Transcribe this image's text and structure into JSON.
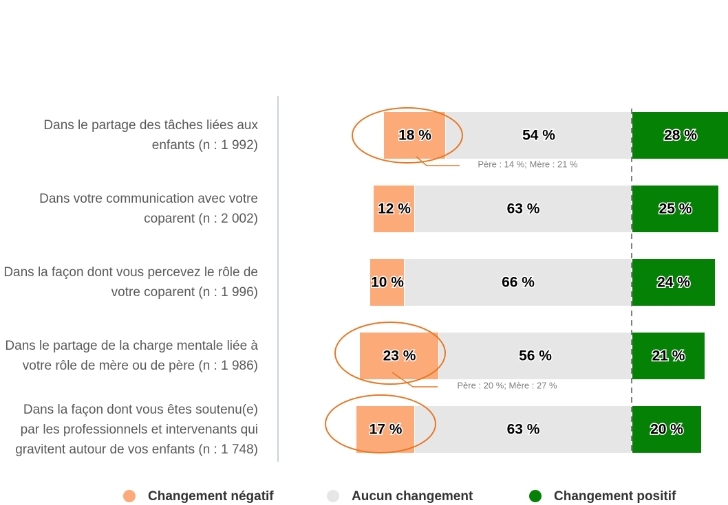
{
  "chart_data": {
    "type": "diverging-bar",
    "categories": [
      "Dans le partage des tâches liées aux enfants (n : 1 992)",
      "Dans votre communication avec votre coparent (n : 2 002)",
      "Dans la façon dont vous percevez le rôle de votre coparent (n : 1 996)",
      "Dans le partage de la charge mentale liée à votre rôle de mère ou de père (n : 1 986)",
      "Dans la façon dont vous êtes soutenu(e) par les professionnels et intervenants qui gravitent autour de vos enfants (n : 1 748)"
    ],
    "series": [
      {
        "name": "Changement négatif",
        "color": "#fcaa78",
        "values": [
          18,
          12,
          10,
          23,
          17
        ],
        "value_labels": [
          "18 %",
          "12 %",
          "10 %",
          "23 %",
          "17 %"
        ]
      },
      {
        "name": "Aucun changement",
        "color": "#e6e6e6",
        "values": [
          54,
          63,
          66,
          56,
          63
        ],
        "value_labels": [
          "54 %",
          "63 %",
          "66 %",
          "56 %",
          "63 %"
        ]
      },
      {
        "name": "Changement positif",
        "color": "#058205",
        "values": [
          28,
          25,
          24,
          21,
          20
        ],
        "value_labels": [
          "28 %",
          "25 %",
          "24 %",
          "21 %",
          "20 %"
        ]
      }
    ],
    "annotations": [
      "Père : 14 %; Mère : 21 %",
      "Père : 20 %; Mère : 27 %"
    ]
  }
}
